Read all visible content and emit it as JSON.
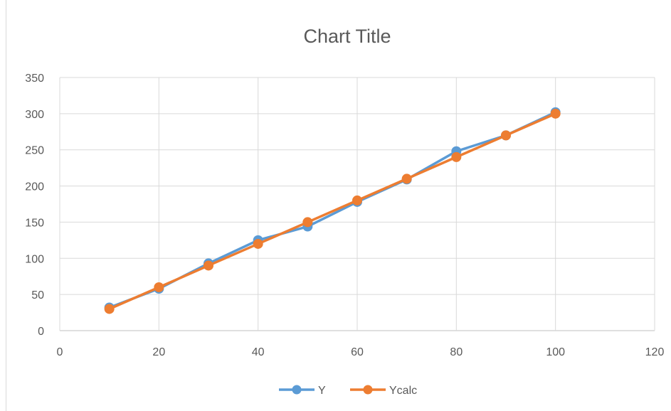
{
  "chart_data": {
    "type": "line",
    "title": "Chart Title",
    "xlabel": "",
    "ylabel": "",
    "x": [
      10,
      20,
      30,
      40,
      50,
      60,
      70,
      80,
      90,
      100
    ],
    "xlim": [
      0,
      120
    ],
    "ylim": [
      0,
      350
    ],
    "xticks": [
      0,
      20,
      40,
      60,
      80,
      100,
      120
    ],
    "yticks": [
      0,
      50,
      100,
      150,
      200,
      250,
      300,
      350
    ],
    "grid": true,
    "legend_position": "bottom",
    "series": [
      {
        "name": "Y",
        "color": "#5b9bd5",
        "values": [
          32,
          58,
          93,
          125,
          144,
          178,
          209,
          248,
          270,
          302
        ]
      },
      {
        "name": "Ycalc",
        "color": "#ed7d31",
        "values": [
          30,
          60,
          90,
          120,
          150,
          180,
          210,
          240,
          270,
          300
        ]
      }
    ]
  }
}
